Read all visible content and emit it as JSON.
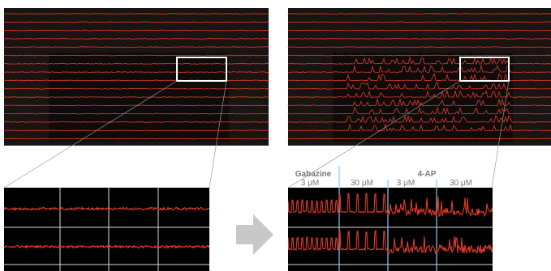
{
  "labels": {
    "drug_1": "Gabazine",
    "drug_2": "4-AP",
    "concentrations": [
      "3 μM",
      "30 μM",
      "3 μM",
      "30 μM"
    ]
  }
}
